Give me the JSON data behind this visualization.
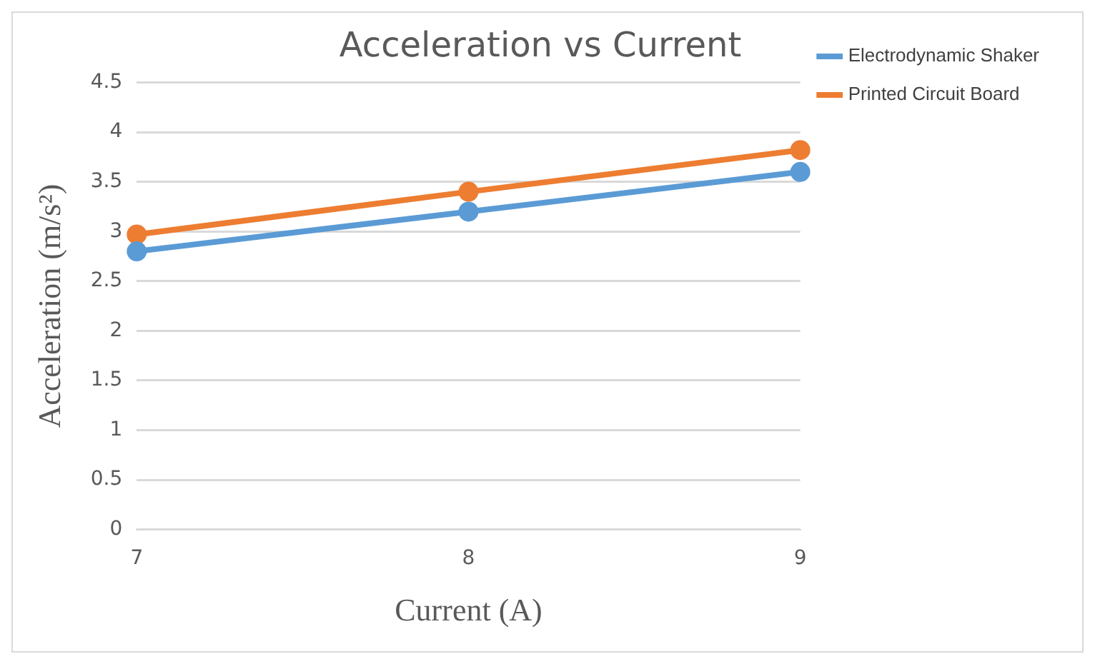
{
  "chart_data": {
    "type": "line",
    "title": "Acceleration vs Current",
    "xlabel": "Current (A)",
    "ylabel": "Acceleration (m/s²)",
    "categories": [
      "7",
      "8",
      "9"
    ],
    "series": [
      {
        "name": "Electrodynamic Shaker",
        "color": "#5b9bd5",
        "values": [
          2.8,
          3.2,
          3.6
        ]
      },
      {
        "name": "Printed Circuit Board",
        "color": "#ed7d31",
        "values": [
          2.97,
          3.4,
          3.82
        ]
      }
    ],
    "ylim": [
      0,
      4.5
    ],
    "yticks": [
      0,
      0.5,
      1,
      1.5,
      2,
      2.5,
      3,
      3.5,
      4,
      4.5
    ],
    "grid": "y",
    "legend": "top right",
    "marker": "circle",
    "line_style": "solid"
  }
}
